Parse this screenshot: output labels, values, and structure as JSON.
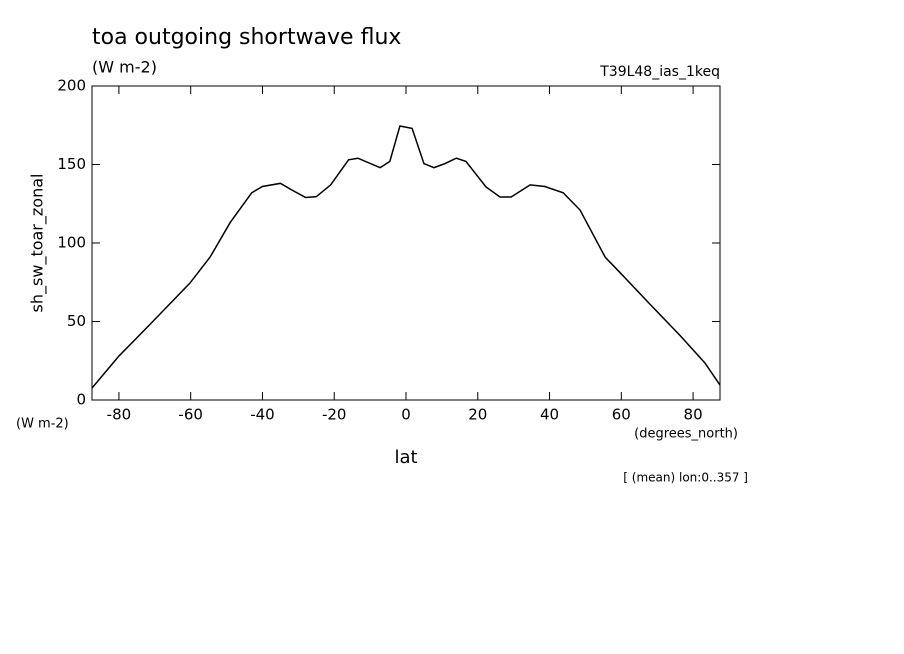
{
  "chart_data": {
    "type": "line",
    "title": "toa outgoing shortwave flux",
    "units_top": "(W m-2)",
    "dataset": "T39L48_ias_1keq",
    "y_label": "sh_sw_toar_zonal",
    "y_units": "(W m-2)",
    "x_units": "(degrees_north)",
    "x_label": "lat",
    "note": "[ (mean) lon:0..357 ]",
    "x": [
      -87.5,
      -80,
      -71.4,
      -60.2,
      -54.6,
      -49,
      -43,
      -40,
      -35,
      -32,
      -28,
      -25,
      -21,
      -16,
      -13.4,
      -7.2,
      -4.5,
      -1.7,
      1.7,
      5,
      7.8,
      10.9,
      14,
      16.7,
      22.3,
      26.2,
      29.3,
      34.6,
      38.7,
      43.8,
      48.5,
      55.5,
      59.7,
      68,
      76.4,
      83.3,
      87.5
    ],
    "series": [
      {
        "name": "sh_sw_toar_zonal",
        "color": "#000000",
        "values": [
          7.6,
          28,
          48,
          74.5,
          91,
          113,
          132,
          136,
          138,
          134,
          129,
          129.5,
          137,
          153,
          154,
          148,
          152,
          174.5,
          173,
          150.6,
          148,
          150.6,
          154,
          152,
          135.7,
          129.3,
          129.3,
          137,
          136,
          132,
          121,
          91,
          81,
          61,
          41,
          23.6,
          9.5
        ]
      }
    ],
    "xlim": [
      -87.5,
      87.5
    ],
    "ylim": [
      0,
      200
    ],
    "xticks": [
      -80,
      -60,
      -40,
      -20,
      0,
      20,
      40,
      60,
      80
    ],
    "yticks": [
      0,
      50,
      100,
      150,
      200
    ]
  }
}
